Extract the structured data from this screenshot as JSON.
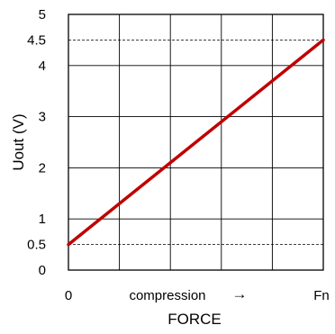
{
  "chart_data": {
    "type": "line",
    "title": "",
    "xlabel": "FORCE",
    "ylabel": "Uout (V)",
    "x_tick_labels": [
      {
        "x": 0,
        "label": "0"
      },
      {
        "x": 5,
        "label": "Fn"
      }
    ],
    "x_annotation": {
      "text": "compression",
      "arrow": "→"
    },
    "y_tick_labels": [
      {
        "y": 0,
        "label": "0"
      },
      {
        "y": 0.5,
        "label": "0.5"
      },
      {
        "y": 1,
        "label": "1"
      },
      {
        "y": 2,
        "label": "2"
      },
      {
        "y": 3,
        "label": "3"
      },
      {
        "y": 4,
        "label": "4"
      },
      {
        "y": 4.5,
        "label": "4.5"
      },
      {
        "y": 5,
        "label": "5"
      }
    ],
    "xlim": [
      0,
      5
    ],
    "ylim": [
      0,
      5
    ],
    "grid": true,
    "x_gridlines": [
      1,
      2,
      3,
      4
    ],
    "y_gridlines": [
      1,
      2,
      3,
      4
    ],
    "reference_lines": [
      0.5,
      4.5
    ],
    "series": [
      {
        "color": "#c00000",
        "x": [
          0,
          5
        ],
        "y": [
          0.5,
          4.5
        ]
      }
    ]
  }
}
